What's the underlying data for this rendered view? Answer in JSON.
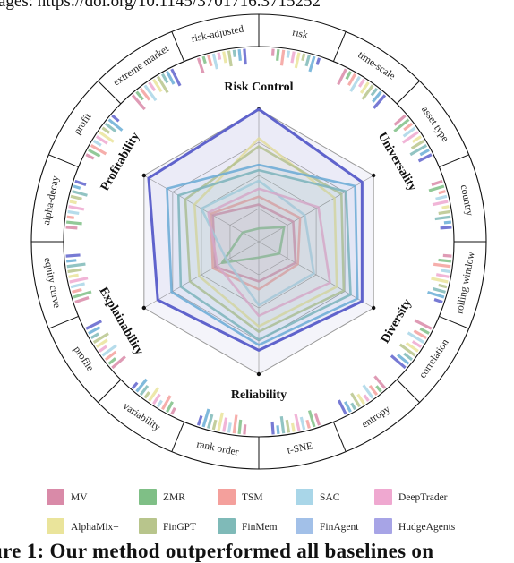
{
  "top_caption": "ages: https://doi.org/10.1145/3701716.3715252",
  "bottom_caption": "ure 1: Our method outperformed all baselines on",
  "chart_data": {
    "type": "radar",
    "axes": [
      "Risk Control",
      "Universality",
      "Diversity",
      "Reliability",
      "Explainability",
      "Profitability"
    ],
    "range": [
      0,
      1
    ],
    "series": [
      {
        "name": "MV",
        "color": "#d98aa8",
        "values": [
          0.28,
          0.3,
          0.32,
          0.3,
          0.38,
          0.4
        ]
      },
      {
        "name": "ZMR",
        "color": "#7fbf86",
        "values": [
          0.1,
          0.22,
          0.18,
          0.12,
          0.32,
          0.14
        ]
      },
      {
        "name": "TSM",
        "color": "#f4a09c",
        "values": [
          0.34,
          0.36,
          0.34,
          0.36,
          0.4,
          0.42
        ]
      },
      {
        "name": "SAC",
        "color": "#a9d6e8",
        "values": [
          0.46,
          0.4,
          0.48,
          0.48,
          0.28,
          0.5
        ]
      },
      {
        "name": "DeepTrader",
        "color": "#efa8d0",
        "values": [
          0.4,
          0.52,
          0.62,
          0.56,
          0.36,
          0.44
        ]
      },
      {
        "name": "AlphaMix+",
        "color": "#eae49b",
        "values": [
          0.78,
          0.66,
          0.68,
          0.64,
          0.52,
          0.56
        ]
      },
      {
        "name": "FinGPT",
        "color": "#b8c58c",
        "values": [
          0.72,
          0.72,
          0.74,
          0.68,
          0.6,
          0.64
        ]
      },
      {
        "name": "FinMem",
        "color": "#7fbab8",
        "values": [
          0.54,
          0.76,
          0.8,
          0.74,
          0.68,
          0.7
        ]
      },
      {
        "name": "FinAgent",
        "color": "#6aaed6",
        "values": [
          0.58,
          0.84,
          0.86,
          0.78,
          0.76,
          0.8
        ]
      },
      {
        "name": "HudgeAgents",
        "color": "#5f63cc",
        "values": [
          1.0,
          0.9,
          0.9,
          0.82,
          0.88,
          0.96
        ]
      }
    ],
    "outer_ring_labels": [
      "risk",
      "time-scale",
      "asset type",
      "country",
      "rolling window",
      "correlation",
      "entropy",
      "t-SNE",
      "rank order",
      "variability",
      "profile",
      "equity curve",
      "alpha-decay",
      "profit",
      "extreme market",
      "risk-adjusted"
    ],
    "legend_placement": "bottom"
  },
  "legend": [
    {
      "name": "MV",
      "color": "#d98aa8"
    },
    {
      "name": "ZMR",
      "color": "#7fbf86"
    },
    {
      "name": "TSM",
      "color": "#f4a09c"
    },
    {
      "name": "SAC",
      "color": "#a9d6e8"
    },
    {
      "name": "DeepTrader",
      "color": "#efa8d0"
    },
    {
      "name": "AlphaMix+",
      "color": "#eae49b"
    },
    {
      "name": "FinGPT",
      "color": "#b8c58c"
    },
    {
      "name": "FinMem",
      "color": "#7fbab8"
    },
    {
      "name": "FinAgent",
      "color": "#a2c0e8"
    },
    {
      "name": "HudgeAgents",
      "color": "#a7a4e6"
    }
  ]
}
